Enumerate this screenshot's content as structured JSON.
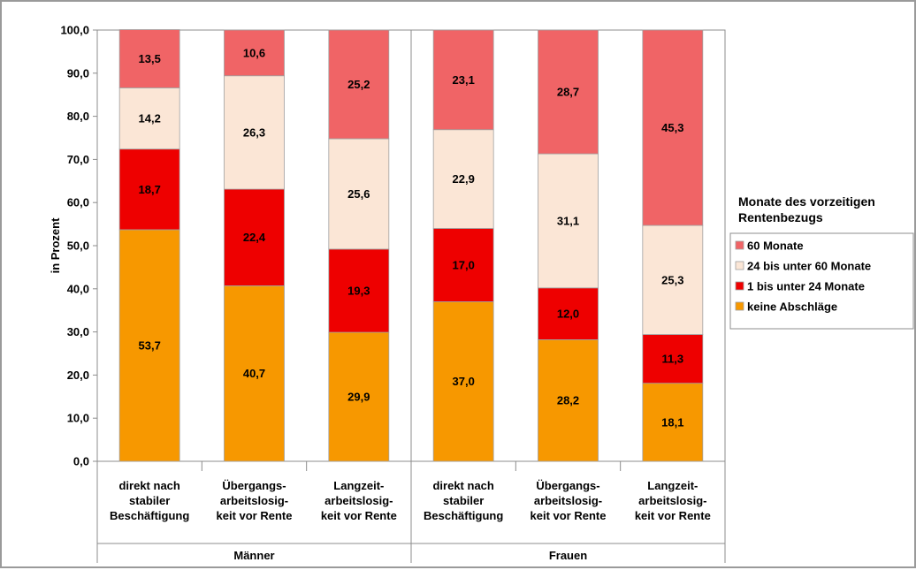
{
  "chart_data": {
    "type": "bar",
    "stacked": true,
    "ylabel": "in Prozent",
    "ylim": [
      0,
      100
    ],
    "yticks": [
      "0,0",
      "10,0",
      "20,0",
      "30,0",
      "40,0",
      "50,0",
      "60,0",
      "70,0",
      "80,0",
      "90,0",
      "100,0"
    ],
    "grid": false,
    "groups": [
      {
        "label": "Männer",
        "categories": [
          [
            "direkt nach",
            "stabiler",
            "Beschäftigung"
          ],
          [
            "Übergangs-",
            "arbeitslosig-",
            "keit vor Rente"
          ],
          [
            "Langzeit-",
            "arbeitslosig-",
            "keit vor Rente"
          ]
        ]
      },
      {
        "label": "Frauen",
        "categories": [
          [
            "direkt nach",
            "stabiler",
            "Beschäftigung"
          ],
          [
            "Übergangs-",
            "arbeitslosig-",
            "keit vor Rente"
          ],
          [
            "Langzeit-",
            "arbeitslosig-",
            "keit vor Rente"
          ]
        ]
      }
    ],
    "series": [
      {
        "name": "keine Abschläge",
        "color": "#f79800",
        "values": [
          53.7,
          40.7,
          29.9,
          37.0,
          28.2,
          18.1
        ],
        "labels": [
          "53,7",
          "40,7",
          "29,9",
          "37,0",
          "28,2",
          "18,1"
        ]
      },
      {
        "name": "1 bis unter 24 Monate",
        "color": "#ee0000",
        "values": [
          18.7,
          22.4,
          19.3,
          17.0,
          12.0,
          11.3
        ],
        "labels": [
          "18,7",
          "22,4",
          "19,3",
          "17,0",
          "12,0",
          "11,3"
        ]
      },
      {
        "name": "24 bis unter 60 Monate",
        "color": "#fbe6d6",
        "values": [
          14.2,
          26.3,
          25.6,
          22.9,
          31.1,
          25.3
        ],
        "labels": [
          "14,2",
          "26,3",
          "25,6",
          "22,9",
          "31,1",
          "25,3"
        ]
      },
      {
        "name": "60 Monate",
        "color": "#f06466",
        "values": [
          13.5,
          10.6,
          25.2,
          23.1,
          28.7,
          45.3
        ],
        "labels": [
          "13,5",
          "10,6",
          "25,2",
          "23,1",
          "28,7",
          "45,3"
        ]
      }
    ],
    "legend": {
      "title": [
        "Monate des vorzeitigen",
        "Rentenbezugs"
      ],
      "placement": "right",
      "order": [
        "60 Monate",
        "24 bis unter 60 Monate",
        "1 bis unter 24 Monate",
        "keine Abschläge"
      ]
    }
  }
}
